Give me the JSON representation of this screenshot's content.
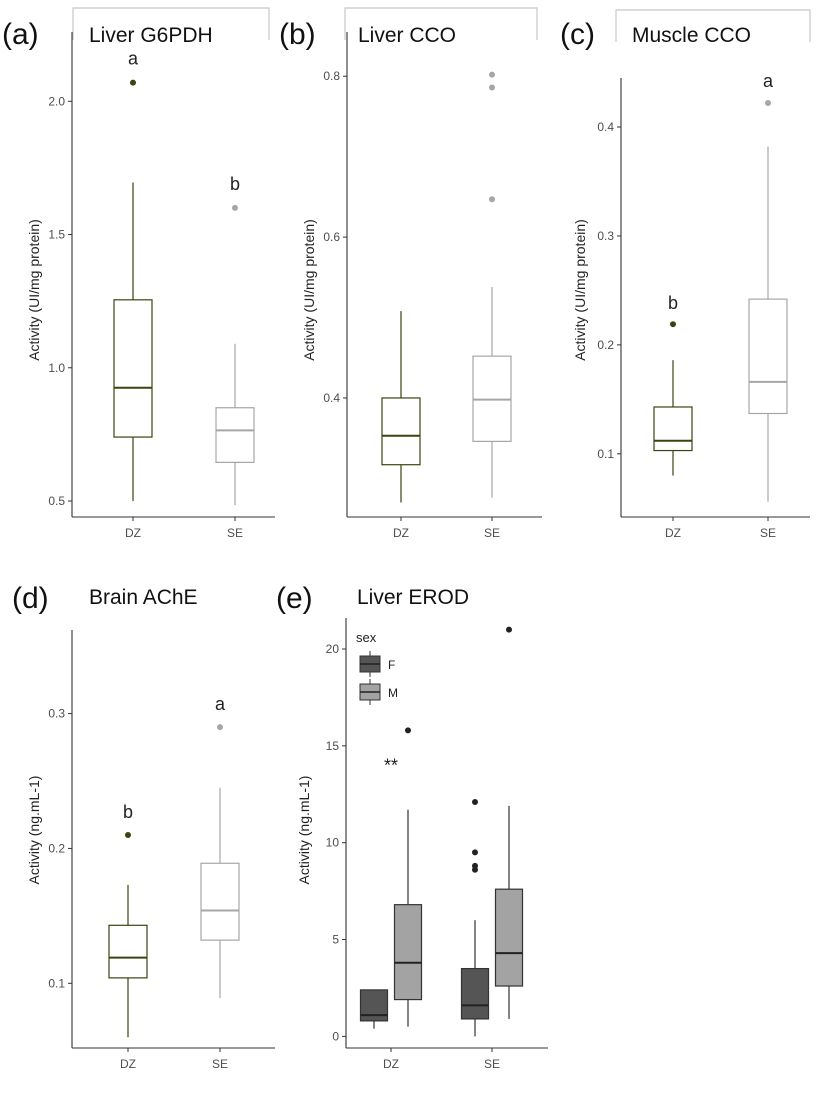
{
  "colors": {
    "dz": "#3a4410",
    "se": "#a6a6a6",
    "sex_f": "#555555",
    "sex_m": "#a3a3a3",
    "axis": "#333333",
    "tab_border": "#c8c8c8"
  },
  "chart_data": [
    {
      "id": "a",
      "type": "boxplot",
      "panel_label": "(a)",
      "title": "Liver G6PDH",
      "ylabel": "Activity (UI/mg protein)",
      "xlabel": "",
      "categories": [
        "DZ",
        "SE"
      ],
      "ylim": [
        0.44,
        2.26
      ],
      "yticks": [
        0.5,
        1.0,
        1.5,
        2.0
      ],
      "ytick_labels": [
        "0.5",
        "1.0",
        "1.5",
        "2.0"
      ],
      "boxes": [
        {
          "x": "DZ",
          "min": 0.5,
          "q1": 0.74,
          "median": 0.925,
          "q3": 1.255,
          "max": 1.695,
          "outliers": [
            2.07
          ],
          "sig": "a"
        },
        {
          "x": "SE",
          "min": 0.485,
          "q1": 0.645,
          "median": 0.765,
          "q3": 0.85,
          "max": 1.09,
          "outliers": [
            1.6
          ],
          "sig": "b"
        }
      ]
    },
    {
      "id": "b",
      "type": "boxplot",
      "panel_label": "(b)",
      "title": "Liver CCO",
      "ylabel": "Activity (UI/mg protein)",
      "xlabel": "",
      "categories": [
        "DZ",
        "SE"
      ],
      "ylim": [
        0.252,
        0.855
      ],
      "yticks": [
        0.4,
        0.6,
        0.8
      ],
      "ytick_labels": [
        "0.4",
        "0.6",
        "0.8"
      ],
      "boxes": [
        {
          "x": "DZ",
          "min": 0.27,
          "q1": 0.317,
          "median": 0.353,
          "q3": 0.4,
          "max": 0.508,
          "outliers": []
        },
        {
          "x": "SE",
          "min": 0.276,
          "q1": 0.346,
          "median": 0.398,
          "q3": 0.452,
          "max": 0.538,
          "outliers": [
            0.647,
            0.786,
            0.802
          ]
        }
      ]
    },
    {
      "id": "c",
      "type": "boxplot",
      "panel_label": "(c)",
      "title": "Muscle CCO",
      "ylabel": "Activity (UI/mg protein)",
      "xlabel": "",
      "categories": [
        "DZ",
        "SE"
      ],
      "ylim": [
        0.042,
        0.445
      ],
      "yticks": [
        0.1,
        0.2,
        0.3,
        0.4
      ],
      "ytick_labels": [
        "0.1",
        "0.2",
        "0.3",
        "0.4"
      ],
      "boxes": [
        {
          "x": "DZ",
          "min": 0.08,
          "q1": 0.103,
          "median": 0.112,
          "q3": 0.143,
          "max": 0.186,
          "outliers": [
            0.219
          ],
          "sig": "b"
        },
        {
          "x": "SE",
          "min": 0.056,
          "q1": 0.137,
          "median": 0.166,
          "q3": 0.242,
          "max": 0.382,
          "outliers": [
            0.422
          ],
          "sig": "a"
        }
      ]
    },
    {
      "id": "d",
      "type": "boxplot",
      "panel_label": "(d)",
      "title": "Brain AChE",
      "ylabel": "Activity (ng.mL-1)",
      "xlabel": "",
      "categories": [
        "DZ",
        "SE"
      ],
      "ylim": [
        0.052,
        0.362
      ],
      "yticks": [
        0.1,
        0.2,
        0.3
      ],
      "ytick_labels": [
        "0.1",
        "0.2",
        "0.3"
      ],
      "boxes": [
        {
          "x": "DZ",
          "min": 0.06,
          "q1": 0.104,
          "median": 0.119,
          "q3": 0.143,
          "max": 0.173,
          "outliers": [
            0.21
          ],
          "sig": "b"
        },
        {
          "x": "SE",
          "min": 0.089,
          "q1": 0.132,
          "median": 0.154,
          "q3": 0.189,
          "max": 0.245,
          "outliers": [
            0.29
          ],
          "sig": "a"
        }
      ]
    },
    {
      "id": "e",
      "type": "boxplot",
      "panel_label": "(e)",
      "title": "Liver EROD",
      "ylabel": "Activity (ng.mL-1)",
      "xlabel": "",
      "categories": [
        "DZ",
        "SE"
      ],
      "ylim": [
        -0.6,
        21.6
      ],
      "yticks": [
        0,
        5,
        10,
        15,
        20
      ],
      "ytick_labels": [
        "0",
        "5",
        "10",
        "15",
        "20"
      ],
      "legend": {
        "title": "sex",
        "placement": "top-left",
        "entries": [
          "F",
          "M"
        ]
      },
      "annotations": [
        {
          "text": "**",
          "x": "DZ",
          "y": 14.2
        }
      ],
      "boxes": [
        {
          "x": "DZ",
          "group": "F",
          "min": 0.4,
          "q1": 0.8,
          "median": 1.1,
          "q3": 2.4,
          "max": 2.4,
          "outliers": []
        },
        {
          "x": "DZ",
          "group": "M",
          "min": 0.5,
          "q1": 1.9,
          "median": 3.8,
          "q3": 6.8,
          "max": 11.7,
          "outliers": [
            15.8
          ]
        },
        {
          "x": "SE",
          "group": "F",
          "min": 0.0,
          "q1": 0.9,
          "median": 1.6,
          "q3": 3.5,
          "max": 6.0,
          "outliers": [
            8.6,
            8.8,
            9.5,
            12.1
          ]
        },
        {
          "x": "SE",
          "group": "M",
          "min": 0.9,
          "q1": 2.6,
          "median": 4.3,
          "q3": 7.6,
          "max": 11.9,
          "outliers": [
            21.0
          ]
        }
      ]
    }
  ]
}
